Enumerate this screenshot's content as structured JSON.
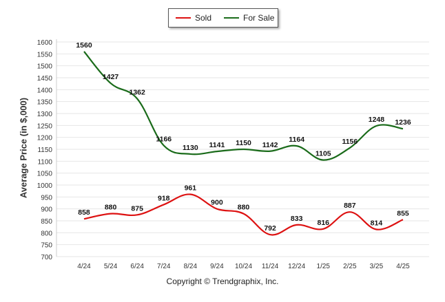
{
  "chart_data": {
    "type": "line",
    "categories": [
      "4/24",
      "5/24",
      "6/24",
      "7/24",
      "8/24",
      "9/24",
      "10/24",
      "11/24",
      "12/24",
      "1/25",
      "2/25",
      "3/25",
      "4/25"
    ],
    "series": [
      {
        "name": "Sold",
        "color": "#dd1111",
        "values": [
          858,
          880,
          875,
          918,
          961,
          900,
          880,
          792,
          833,
          816,
          887,
          814,
          855
        ]
      },
      {
        "name": "For Sale",
        "color": "#1a6b1a",
        "values": [
          1560,
          1427,
          1362,
          1166,
          1130,
          1141,
          1150,
          1142,
          1164,
          1105,
          1156,
          1248,
          1236
        ]
      }
    ],
    "ylabel": "Average Price (in $,000)",
    "ylim": [
      700,
      1600
    ],
    "yticks": [
      700,
      750,
      800,
      850,
      900,
      950,
      1000,
      1050,
      1100,
      1150,
      1200,
      1250,
      1300,
      1350,
      1400,
      1450,
      1500,
      1550,
      1600
    ],
    "grid": true,
    "legend_position": "top-center"
  },
  "legend": {
    "sold": "Sold",
    "for_sale": "For Sale"
  },
  "footer": {
    "copyright": "Copyright © Trendgraphix, Inc."
  }
}
